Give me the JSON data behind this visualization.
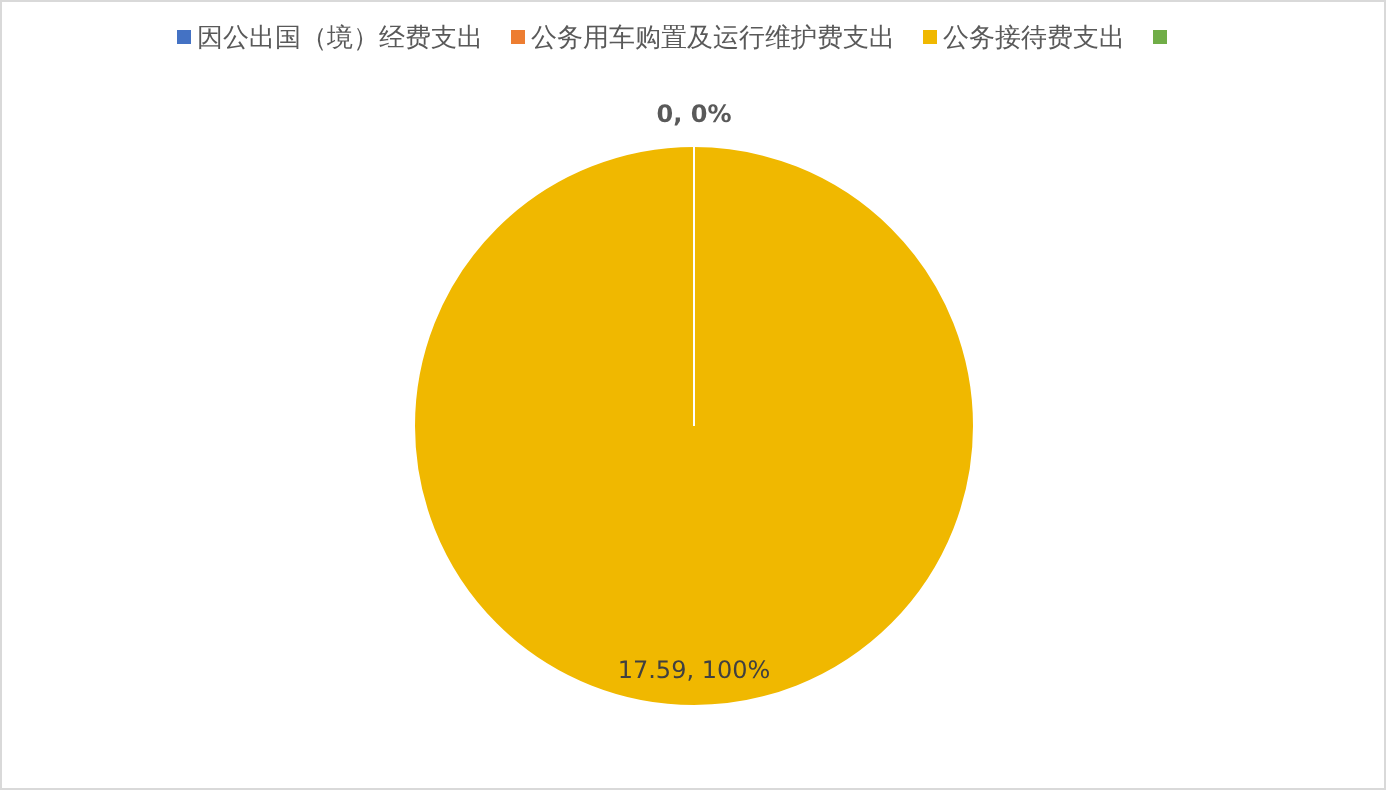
{
  "chart_data": {
    "type": "pie",
    "categories": [
      "因公出国（境）经费支出",
      "公务用车购置及运行维护费支出",
      "公务接待费支出",
      null
    ],
    "values": [
      0,
      0,
      17.59,
      0
    ],
    "colors": [
      "#4472c4",
      "#ed7d31",
      "#f0b800",
      "#70ad47"
    ],
    "value_labels": [
      "0, 0%",
      null,
      "17.59, 100%",
      null
    ],
    "legend": "top"
  }
}
